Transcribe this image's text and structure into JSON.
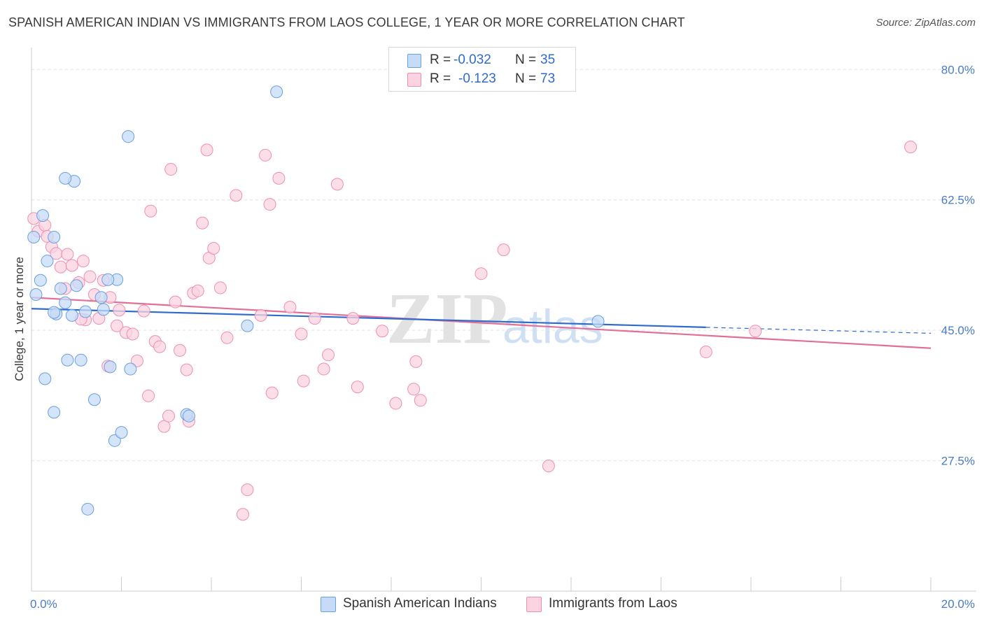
{
  "title": "SPANISH AMERICAN INDIAN VS IMMIGRANTS FROM LAOS COLLEGE, 1 YEAR OR MORE CORRELATION CHART",
  "source": "Source: ZipAtlas.com",
  "watermark": {
    "zip": "ZIP",
    "atlas": "atlas"
  },
  "stats": [
    {
      "r_label": "R =",
      "r_value": "-0.032",
      "n_label": "N =",
      "n_value": "35",
      "color": "#a8c8f0",
      "border": "#6a9fe0"
    },
    {
      "r_label": "R =",
      "r_value": "-0.123",
      "n_label": "N =",
      "n_value": "73",
      "color": "#f9c4d6",
      "border": "#ee8fb0"
    }
  ],
  "legend": [
    {
      "label": "Spanish American Indians",
      "color": "#c5dbf7",
      "border": "#6a9fe0"
    },
    {
      "label": "Immigrants from Laos",
      "color": "#fbd3e1",
      "border": "#ee8fb0"
    }
  ],
  "chart_data": {
    "type": "scatter",
    "title": "SPANISH AMERICAN INDIAN VS IMMIGRANTS FROM LAOS COLLEGE, 1 YEAR OR MORE CORRELATION CHART",
    "xlabel": "",
    "ylabel": "College, 1 year or more",
    "xlim": [
      0,
      20
    ],
    "ylim": [
      10,
      82
    ],
    "x_tick_labels": [
      "0.0%",
      "20.0%"
    ],
    "y_ticks": [
      27.5,
      45.0,
      62.5,
      80.0
    ],
    "y_tick_labels": [
      "27.5%",
      "45.0%",
      "62.5%",
      "80.0%"
    ],
    "grid": true,
    "series": [
      {
        "name": "Spanish American Indians",
        "color": "#6a9fe0",
        "fill": "#c5dbf7",
        "points": [
          [
            0.05,
            57.5
          ],
          [
            0.1,
            49.8
          ],
          [
            0.25,
            60.4
          ],
          [
            0.35,
            54.3
          ],
          [
            0.2,
            51.7
          ],
          [
            0.3,
            38.5
          ],
          [
            0.5,
            34.0
          ],
          [
            0.55,
            47.2
          ],
          [
            0.65,
            50.6
          ],
          [
            0.75,
            48.7
          ],
          [
            0.8,
            41.0
          ],
          [
            0.9,
            47.0
          ],
          [
            1.0,
            51.0
          ],
          [
            1.1,
            41.0
          ],
          [
            1.2,
            47.5
          ],
          [
            1.4,
            35.7
          ],
          [
            1.55,
            49.4
          ],
          [
            1.6,
            47.8
          ],
          [
            1.75,
            40.1
          ],
          [
            1.85,
            30.2
          ],
          [
            1.9,
            51.8
          ],
          [
            2.0,
            31.3
          ],
          [
            2.15,
            71.0
          ],
          [
            0.95,
            65.0
          ],
          [
            0.75,
            65.4
          ],
          [
            0.5,
            57.5
          ],
          [
            1.25,
            21.0
          ],
          [
            1.7,
            51.8
          ],
          [
            3.45,
            33.7
          ],
          [
            3.5,
            33.5
          ],
          [
            4.8,
            45.6
          ],
          [
            5.45,
            77.0
          ],
          [
            12.6,
            46.2
          ],
          [
            0.5,
            47.4
          ],
          [
            2.2,
            39.8
          ]
        ],
        "trend": {
          "x": [
            0,
            15
          ],
          "y": [
            47.9,
            45.4
          ],
          "dashed_x": [
            15,
            20
          ],
          "dashed_y": [
            45.4,
            44.6
          ]
        }
      },
      {
        "name": "Immigrants from Laos",
        "color": "#ee8fb0",
        "fill": "#fbd3e1",
        "points": [
          [
            0.05,
            60.0
          ],
          [
            0.15,
            58.3
          ],
          [
            0.3,
            59.1
          ],
          [
            0.35,
            57.6
          ],
          [
            0.45,
            56.2
          ],
          [
            0.55,
            55.3
          ],
          [
            0.65,
            53.5
          ],
          [
            0.75,
            50.6
          ],
          [
            0.8,
            55.2
          ],
          [
            0.9,
            53.7
          ],
          [
            1.05,
            51.4
          ],
          [
            1.15,
            54.3
          ],
          [
            1.3,
            52.2
          ],
          [
            1.2,
            46.4
          ],
          [
            1.4,
            49.8
          ],
          [
            1.5,
            46.6
          ],
          [
            1.6,
            51.7
          ],
          [
            1.7,
            40.2
          ],
          [
            1.75,
            49.4
          ],
          [
            1.9,
            45.6
          ],
          [
            1.95,
            47.7
          ],
          [
            2.1,
            44.7
          ],
          [
            2.25,
            44.5
          ],
          [
            2.35,
            40.9
          ],
          [
            2.5,
            47.6
          ],
          [
            2.6,
            36.2
          ],
          [
            2.65,
            61.0
          ],
          [
            2.75,
            43.5
          ],
          [
            2.85,
            42.8
          ],
          [
            2.95,
            32.1
          ],
          [
            3.05,
            33.5
          ],
          [
            3.1,
            66.6
          ],
          [
            3.2,
            48.8
          ],
          [
            3.3,
            42.3
          ],
          [
            3.45,
            39.7
          ],
          [
            3.5,
            32.8
          ],
          [
            3.6,
            50.0
          ],
          [
            3.7,
            50.3
          ],
          [
            3.8,
            59.4
          ],
          [
            3.9,
            69.2
          ],
          [
            3.95,
            54.7
          ],
          [
            4.05,
            56.0
          ],
          [
            4.2,
            50.7
          ],
          [
            4.35,
            44.0
          ],
          [
            4.55,
            63.1
          ],
          [
            4.7,
            20.3
          ],
          [
            4.8,
            23.6
          ],
          [
            5.1,
            47.0
          ],
          [
            5.2,
            68.5
          ],
          [
            5.3,
            61.9
          ],
          [
            5.35,
            36.6
          ],
          [
            5.5,
            65.4
          ],
          [
            5.75,
            48.1
          ],
          [
            6.0,
            44.5
          ],
          [
            6.05,
            38.2
          ],
          [
            6.3,
            46.6
          ],
          [
            6.5,
            39.8
          ],
          [
            6.6,
            41.7
          ],
          [
            6.8,
            64.6
          ],
          [
            7.15,
            46.6
          ],
          [
            7.25,
            37.4
          ],
          [
            7.8,
            44.9
          ],
          [
            8.1,
            35.2
          ],
          [
            8.5,
            37.1
          ],
          [
            8.55,
            40.8
          ],
          [
            8.65,
            35.6
          ],
          [
            10.0,
            52.6
          ],
          [
            10.5,
            55.8
          ],
          [
            11.5,
            26.8
          ],
          [
            15.0,
            42.1
          ],
          [
            16.1,
            44.9
          ],
          [
            19.55,
            69.6
          ],
          [
            1.1,
            46.5
          ]
        ],
        "trend": {
          "x": [
            0,
            20
          ],
          "y": [
            49.4,
            42.6
          ]
        }
      }
    ]
  }
}
